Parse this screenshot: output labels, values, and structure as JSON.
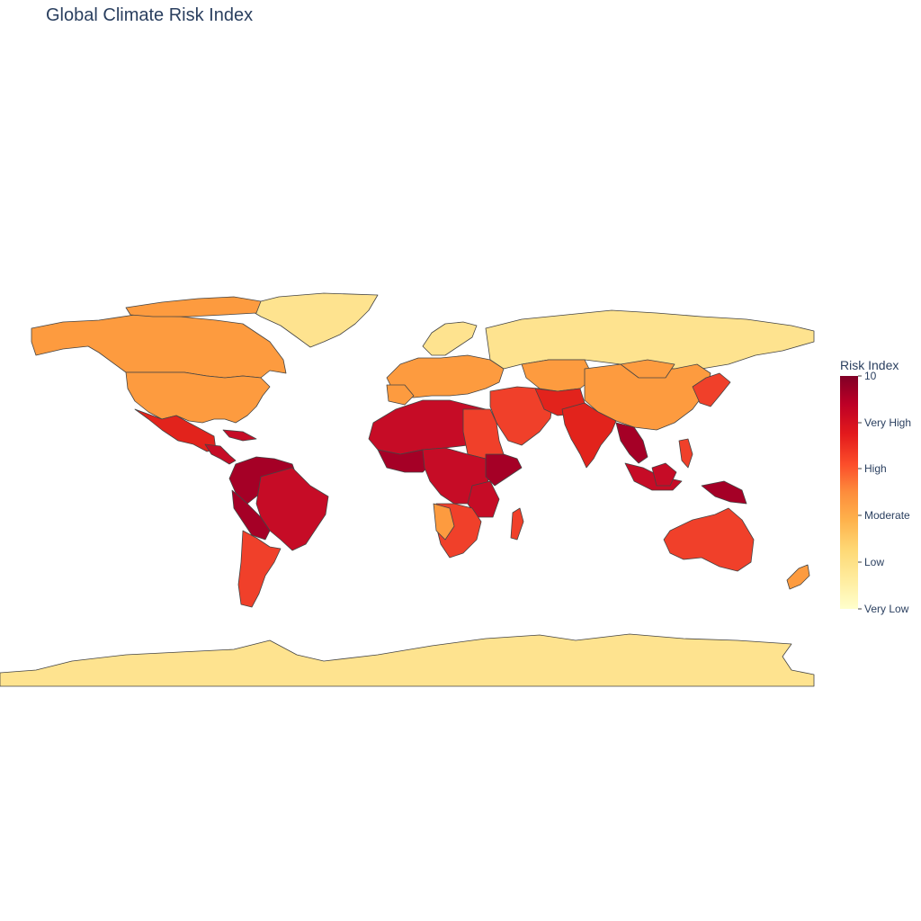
{
  "title": "Global Climate Risk Index",
  "colorbar": {
    "title": "Risk Index",
    "ticks": [
      "10",
      "Very High",
      "High",
      "Moderate",
      "Low",
      "Very Low"
    ],
    "colors": [
      "#800026",
      "#bd0026",
      "#e31a1c",
      "#fc4e2a",
      "#fd8d3c",
      "#feb24c",
      "#fed976",
      "#ffeda0",
      "#ffffcc"
    ]
  },
  "map": {
    "outline_color": "#444444",
    "palette": {
      "very_high": "#a50026",
      "very_high_b": "#c60c26",
      "high": "#e2231c",
      "high_b": "#f0402a",
      "moderate": "#fb8c3b",
      "moderate_b": "#fd9b3f",
      "low": "#fee38f"
    }
  }
}
